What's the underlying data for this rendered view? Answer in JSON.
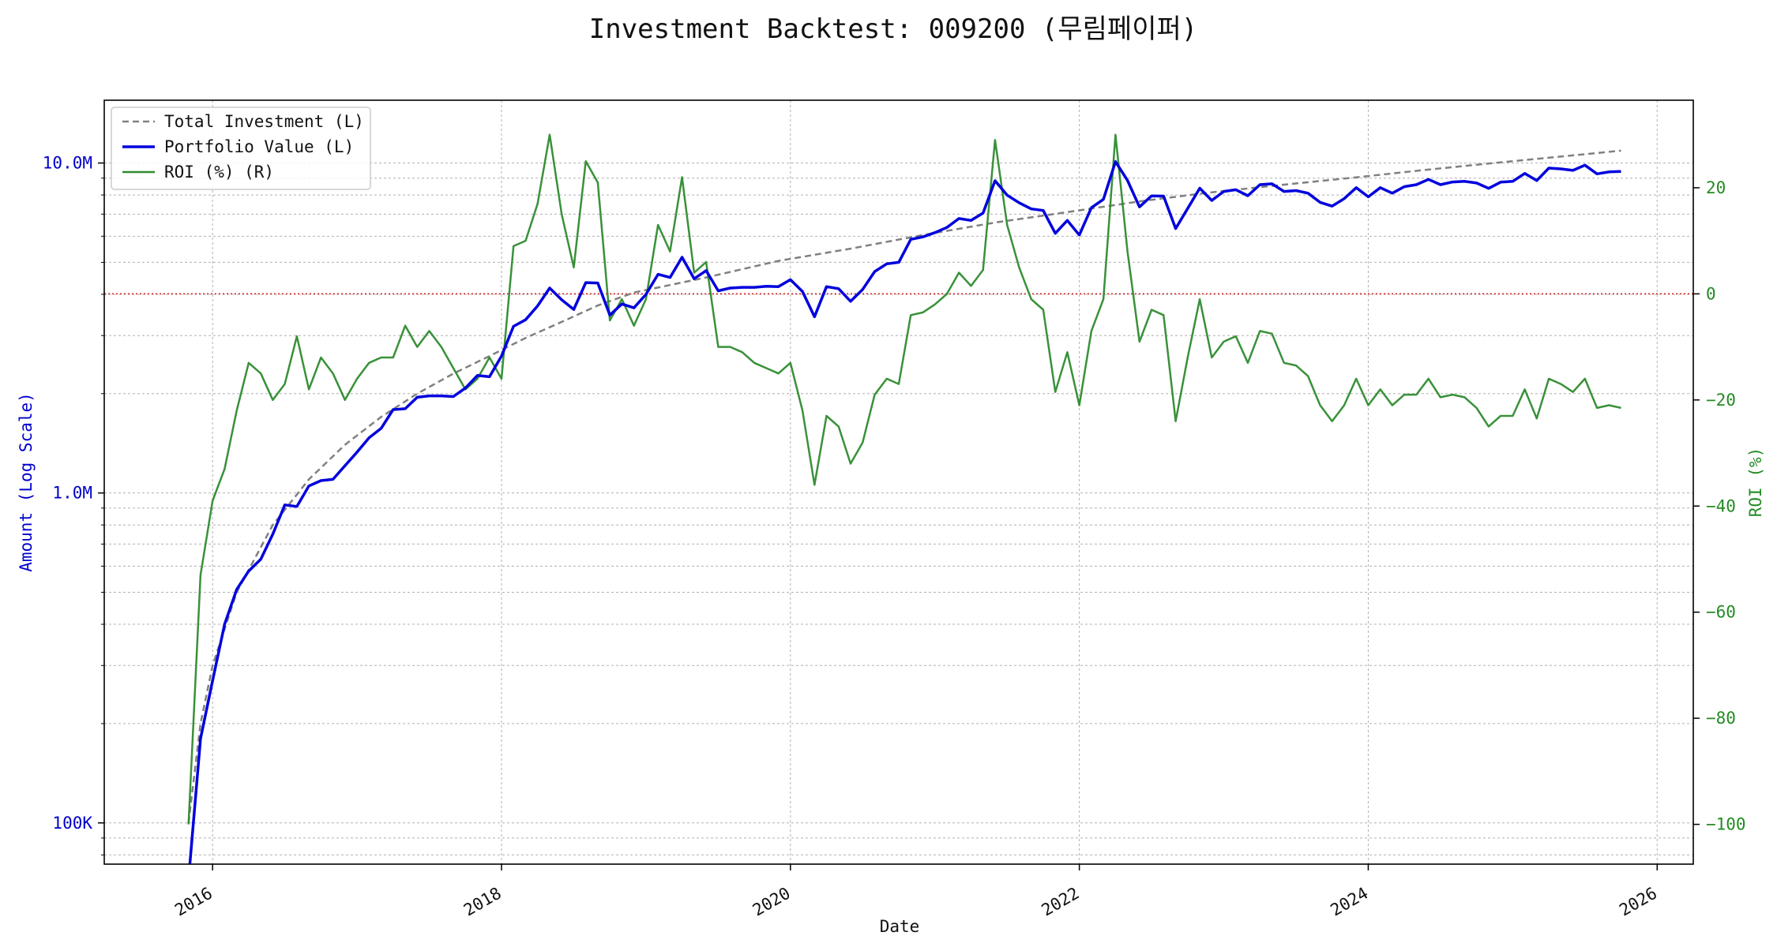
{
  "chart_data": {
    "type": "line",
    "title": "Investment Backtest: 009200 (무림페이퍼)",
    "xlabel": "Date",
    "ylabel_left": "Amount (Log Scale)",
    "ylabel_right": "ROI (%)",
    "x_range": [
      "2015-04",
      "2026-04"
    ],
    "x_ticks": [
      "2016",
      "2018",
      "2020",
      "2022",
      "2024",
      "2026"
    ],
    "y_left_scale": "log",
    "y_left_range": [
      75000,
      15500000
    ],
    "y_left_ticks": [
      {
        "value": 100000,
        "label": "100K"
      },
      {
        "value": 1000000,
        "label": "1.0M"
      },
      {
        "value": 10000000,
        "label": "10.0M"
      }
    ],
    "y_right_range": [
      -107.5,
      36.5
    ],
    "y_right_ticks": [
      {
        "value": 20,
        "label": "20"
      },
      {
        "value": 0,
        "label": "0"
      },
      {
        "value": -20,
        "label": "−20"
      },
      {
        "value": -40,
        "label": "−40"
      },
      {
        "value": -60,
        "label": "−60"
      },
      {
        "value": -80,
        "label": "−80"
      },
      {
        "value": -100,
        "label": "−100"
      }
    ],
    "grid": true,
    "legend_position": "top-left",
    "zero_line": {
      "axis": "right",
      "value": 0,
      "color": "#d62728",
      "style": "dotted"
    },
    "colors": {
      "total_investment": "#808080",
      "portfolio_value": "#0000dd",
      "roi": "#2e8b2e"
    },
    "series": [
      {
        "name": "Total Investment (L)",
        "axis": "left",
        "style": "dashed",
        "x": [
          "2015-11",
          "2015-12",
          "2016-01",
          "2016-03",
          "2016-06",
          "2016-09",
          "2016-12",
          "2017-03",
          "2017-06",
          "2017-09",
          "2017-12",
          "2018-03",
          "2018-06",
          "2018-09",
          "2018-12",
          "2019-06",
          "2019-12",
          "2020-06",
          "2020-12",
          "2021-06",
          "2021-12",
          "2022-06",
          "2022-12",
          "2023-06",
          "2023-12",
          "2024-06",
          "2024-12",
          "2025-06",
          "2025-10"
        ],
        "values": [
          100000,
          200000,
          300000,
          500000,
          800000,
          1100000,
          1400000,
          1700000,
          2000000,
          2300000,
          2600000,
          2950000,
          3300000,
          3700000,
          4050000,
          4500000,
          5050000,
          5500000,
          6050000,
          6600000,
          7100000,
          7650000,
          8150000,
          8600000,
          9050000,
          9550000,
          10050000,
          10550000,
          10900000
        ]
      },
      {
        "name": "Portfolio Value (L)",
        "axis": "left",
        "style": "solid",
        "x": [
          "2015-11",
          "2015-12",
          "2016-01",
          "2016-02",
          "2016-03",
          "2016-04",
          "2016-05",
          "2016-06",
          "2016-07",
          "2016-08",
          "2016-09",
          "2016-10",
          "2016-11",
          "2016-12",
          "2017-01",
          "2017-02",
          "2017-03",
          "2017-04",
          "2017-05",
          "2017-06",
          "2017-07",
          "2017-08",
          "2017-09",
          "2017-10",
          "2017-11",
          "2017-12",
          "2018-01",
          "2018-02",
          "2018-03",
          "2018-04",
          "2018-05",
          "2018-06",
          "2018-07",
          "2018-08",
          "2018-09",
          "2018-10",
          "2018-11",
          "2018-12",
          "2019-01",
          "2019-02",
          "2019-03",
          "2019-04",
          "2019-05",
          "2019-06",
          "2019-07",
          "2019-08",
          "2019-09",
          "2019-10",
          "2019-11",
          "2019-12",
          "2020-01",
          "2020-02",
          "2020-03",
          "2020-04",
          "2020-05",
          "2020-06",
          "2020-07",
          "2020-08",
          "2020-09",
          "2020-10",
          "2020-11",
          "2020-12",
          "2021-01",
          "2021-02",
          "2021-03",
          "2021-04",
          "2021-05",
          "2021-06",
          "2021-07",
          "2021-08",
          "2021-09",
          "2021-10",
          "2021-11",
          "2021-12",
          "2022-01",
          "2022-02",
          "2022-03",
          "2022-04",
          "2022-05",
          "2022-06",
          "2022-07",
          "2022-08",
          "2022-09",
          "2022-10",
          "2022-11",
          "2022-12",
          "2023-01",
          "2023-02",
          "2023-03",
          "2023-04",
          "2023-05",
          "2023-06",
          "2023-07",
          "2023-08",
          "2023-09",
          "2023-10",
          "2023-11",
          "2023-12",
          "2024-01",
          "2024-02",
          "2024-03",
          "2024-04",
          "2024-05",
          "2024-06",
          "2024-07",
          "2024-08",
          "2024-09",
          "2024-10",
          "2024-11",
          "2024-12",
          "2025-01",
          "2025-02",
          "2025-03",
          "2025-04",
          "2025-05",
          "2025-06",
          "2025-07",
          "2025-08",
          "2025-09",
          "2025-10"
        ],
        "values": [
          60000,
          180000,
          270000,
          400000,
          510000,
          580000,
          630000,
          750000,
          920000,
          910000,
          1050000,
          1090000,
          1100000,
          1210000,
          1330000,
          1470000,
          1570000,
          1790000,
          1800000,
          1950000,
          1970000,
          1970000,
          1960000,
          2080000,
          2270000,
          2250000,
          2600000,
          3200000,
          3350000,
          3690000,
          4180000,
          3850000,
          3600000,
          4340000,
          4330000,
          3460000,
          3740000,
          3640000,
          4000000,
          4600000,
          4500000,
          5180000,
          4460000,
          4720000,
          4100000,
          4180000,
          4200000,
          4200000,
          4230000,
          4220000,
          4430000,
          4080000,
          3420000,
          4220000,
          4160000,
          3810000,
          4140000,
          4690000,
          4950000,
          5000000,
          5870000,
          5970000,
          6150000,
          6380000,
          6790000,
          6700000,
          7050000,
          8840000,
          7990000,
          7580000,
          7260000,
          7180000,
          6120000,
          6700000,
          6050000,
          7320000,
          7760000,
          10100000,
          8860000,
          7360000,
          7950000,
          7940000,
          6330000,
          7280000,
          8390000,
          7700000,
          8200000,
          8300000,
          7960000,
          8600000,
          8650000,
          8200000,
          8250000,
          8100000,
          7600000,
          7400000,
          7800000,
          8420000,
          7900000,
          8420000,
          8100000,
          8480000,
          8600000,
          8920000,
          8600000,
          8760000,
          8800000,
          8700000,
          8380000,
          8750000,
          8800000,
          9300000,
          8850000,
          9650000,
          9600000,
          9500000,
          9850000,
          9270000,
          9400000,
          9430000
        ]
      },
      {
        "name": "ROI (%) (R)",
        "axis": "right",
        "style": "solid",
        "x": [
          "2015-11",
          "2015-12",
          "2016-01",
          "2016-02",
          "2016-03",
          "2016-04",
          "2016-05",
          "2016-06",
          "2016-07",
          "2016-08",
          "2016-09",
          "2016-10",
          "2016-11",
          "2016-12",
          "2017-01",
          "2017-02",
          "2017-03",
          "2017-04",
          "2017-05",
          "2017-06",
          "2017-07",
          "2017-08",
          "2017-09",
          "2017-10",
          "2017-11",
          "2017-12",
          "2018-01",
          "2018-02",
          "2018-03",
          "2018-04",
          "2018-05",
          "2018-06",
          "2018-07",
          "2018-08",
          "2018-09",
          "2018-10",
          "2018-11",
          "2018-12",
          "2019-01",
          "2019-02",
          "2019-03",
          "2019-04",
          "2019-05",
          "2019-06",
          "2019-07",
          "2019-08",
          "2019-09",
          "2019-10",
          "2019-11",
          "2019-12",
          "2020-01",
          "2020-02",
          "2020-03",
          "2020-04",
          "2020-05",
          "2020-06",
          "2020-07",
          "2020-08",
          "2020-09",
          "2020-10",
          "2020-11",
          "2020-12",
          "2021-01",
          "2021-02",
          "2021-03",
          "2021-04",
          "2021-05",
          "2021-06",
          "2021-07",
          "2021-08",
          "2021-09",
          "2021-10",
          "2021-11",
          "2021-12",
          "2022-01",
          "2022-02",
          "2022-03",
          "2022-04",
          "2022-05",
          "2022-06",
          "2022-07",
          "2022-08",
          "2022-09",
          "2022-10",
          "2022-11",
          "2022-12",
          "2023-01",
          "2023-02",
          "2023-03",
          "2023-04",
          "2023-05",
          "2023-06",
          "2023-07",
          "2023-08",
          "2023-09",
          "2023-10",
          "2023-11",
          "2023-12",
          "2024-01",
          "2024-02",
          "2024-03",
          "2024-04",
          "2024-05",
          "2024-06",
          "2024-07",
          "2024-08",
          "2024-09",
          "2024-10",
          "2024-11",
          "2024-12",
          "2025-01",
          "2025-02",
          "2025-03",
          "2025-04",
          "2025-05",
          "2025-06",
          "2025-07",
          "2025-08",
          "2025-09",
          "2025-10"
        ],
        "values": [
          -100,
          -53,
          -39,
          -33,
          -22,
          -13,
          -15,
          -20,
          -17,
          -8,
          -18,
          -12,
          -15,
          -20,
          -16,
          -13,
          -12,
          -12,
          -6,
          -10,
          -7,
          -10,
          -14,
          -18,
          -16,
          -12,
          -16,
          9,
          10,
          17,
          30,
          15,
          5,
          25,
          21,
          -5,
          -1,
          -6,
          -1,
          13,
          8,
          22,
          4,
          6,
          -10,
          -10,
          -11,
          -13,
          -14,
          -15,
          -13,
          -22,
          -36,
          -23,
          -25,
          -32,
          -28,
          -19,
          -16,
          -17,
          -4,
          -3.5,
          -2,
          0,
          4,
          1.5,
          4.5,
          29,
          13,
          5,
          -1,
          -3,
          -18.5,
          -11,
          -21,
          -7,
          -1,
          30,
          8,
          -9,
          -3,
          -4,
          -24,
          -12,
          -1,
          -12,
          -9,
          -8,
          -13,
          -7,
          -7.5,
          -13,
          -13.5,
          -15.5,
          -21,
          -24,
          -21,
          -16,
          -21,
          -18,
          -21,
          -19,
          -19,
          -16,
          -19.5,
          -19,
          -19.5,
          -21.5,
          -25,
          -23,
          -23,
          -18,
          -23.5,
          -16,
          -17,
          -18.5,
          -16,
          -21.5,
          -21,
          -21.5
        ]
      }
    ]
  }
}
